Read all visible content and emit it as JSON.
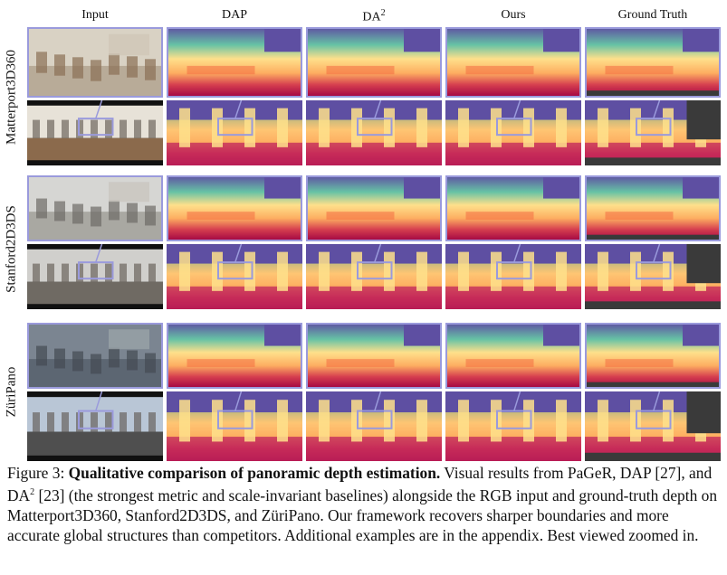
{
  "columns": [
    "Input",
    "DAP",
    "DA",
    "Ours",
    "Ground Truth"
  ],
  "columns_sup": {
    "DA": "2"
  },
  "rows": [
    "Matterport3D360",
    "Stanford2D3DS",
    "ZüriPano"
  ],
  "caption": {
    "label": "Figure 3:",
    "title": "Qualitative comparison of panoramic depth estimation.",
    "text_1": "Visual results from PaGeR, DAP [27], and DA",
    "sup": "2",
    "text_2": "[23] (the strongest metric and scale-invariant baselines) alongside the RGB input and ground-truth depth on Matterport3D360, Stanford2D3DS, and ZüriPano. Our framework recovers sharper boundaries and more accurate global structures than competitors. Additional examples are in the appendix. Best viewed zoomed in."
  },
  "colors": {
    "highlight_box": "#9a9adc",
    "depth_far": "#5e4fa2",
    "depth_mid": "#fee08b",
    "depth_near": "#9e0142",
    "gt_invalid": "#3a3a3a"
  }
}
